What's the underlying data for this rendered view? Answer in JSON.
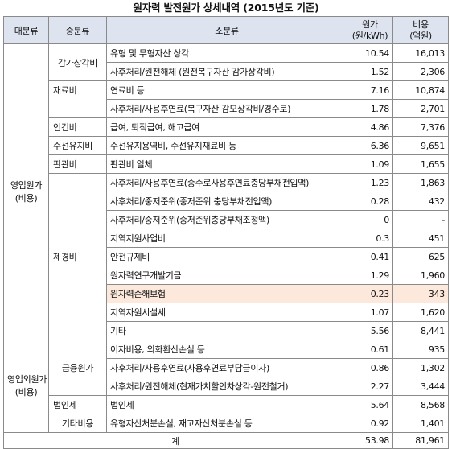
{
  "title": "원자력 발전원가 상세내역 (2015년도 기준)",
  "headers": {
    "major": "대분류",
    "middle": "중분류",
    "minor": "소분류",
    "cost_line1": "원가",
    "cost_line2": "(원/kWh)",
    "amount_line1": "비용",
    "amount_line2": "(억원)"
  },
  "groups": {
    "operating_line1": "영업원가",
    "operating_line2": "(비용)",
    "nonoperating_line1": "영업외원가",
    "nonoperating_line2": "(비용)"
  },
  "middle": {
    "depreciation": "감가상각비",
    "fuel": "재료비",
    "labor": "인건비",
    "repair": "수선유지비",
    "sga": "판관비",
    "other_exp": "제경비",
    "financial": "금융원가",
    "tax": "법인세",
    "other_cost": "기타비용"
  },
  "rows": [
    {
      "sub": "유형 및 무형자산 상각",
      "cost": "10.54",
      "amount": "16,013"
    },
    {
      "sub": "사후처리/원전해체 (원전복구자산 감가상각비)",
      "cost": "1.52",
      "amount": "2,306"
    },
    {
      "sub": "연료비 등",
      "cost": "7.16",
      "amount": "10,874"
    },
    {
      "sub": "사후처리/사용후연료(복구자산 감모상각비/경수로)",
      "cost": "1.78",
      "amount": "2,701"
    },
    {
      "sub": "급여, 퇴직급여, 해고급여",
      "cost": "4.86",
      "amount": "7,376"
    },
    {
      "sub": "수선유지용역비, 수선유지재료비 등",
      "cost": "6.36",
      "amount": "9,651"
    },
    {
      "sub": "판관비 일체",
      "cost": "1.09",
      "amount": "1,655"
    },
    {
      "sub": "사후처리/사용후연료(중수로사용후연료충당부채전입액)",
      "cost": "1.23",
      "amount": "1,863"
    },
    {
      "sub": "사후처리/중저준위(중저준위 충당부채전입액)",
      "cost": "0.28",
      "amount": "432"
    },
    {
      "sub": "사후처리/중저준위(중저준위충당부채조정액)",
      "cost": "0",
      "amount": "-"
    },
    {
      "sub": "지역지원사업비",
      "cost": "0.3",
      "amount": "451"
    },
    {
      "sub": "안전규제비",
      "cost": "0.41",
      "amount": "625"
    },
    {
      "sub": "원자력연구개발기금",
      "cost": "1.29",
      "amount": "1,960"
    },
    {
      "sub": "원자력손해보험",
      "cost": "0.23",
      "amount": "343"
    },
    {
      "sub": "지역자원시설세",
      "cost": "1.07",
      "amount": "1,620"
    },
    {
      "sub": "기타",
      "cost": "5.56",
      "amount": "8,441"
    },
    {
      "sub": "이자비용, 외화환산손실 등",
      "cost": "0.61",
      "amount": "935"
    },
    {
      "sub": "사후처리/사용후연료(사용후연료부담금이자)",
      "cost": "0.86",
      "amount": "1,302"
    },
    {
      "sub": "사후처리/원전해체(현재가치할인차상각-원전철거)",
      "cost": "2.27",
      "amount": "3,444"
    },
    {
      "sub": "법인세",
      "cost": "5.64",
      "amount": "8,568"
    },
    {
      "sub": "유형자산처분손실, 재고자산처분손실 등",
      "cost": "0.92",
      "amount": "1,401"
    }
  ],
  "total": {
    "label": "계",
    "cost": "53.98",
    "amount": "81,961"
  },
  "colors": {
    "header_bg": "#dde4ef",
    "highlight_bg": "#fce9dc",
    "border": "#8a8a8a"
  }
}
